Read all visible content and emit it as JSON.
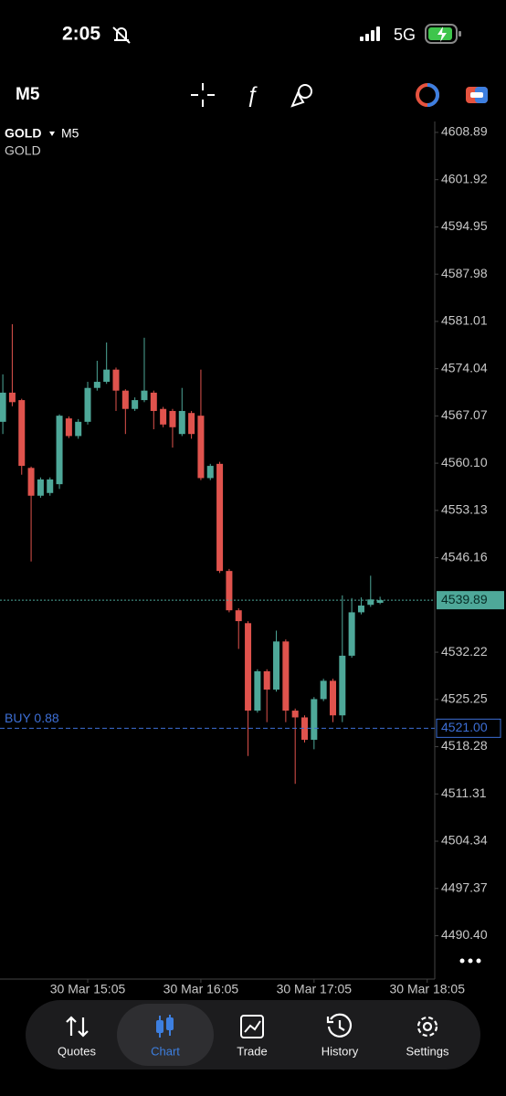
{
  "status_bar": {
    "time": "2:05",
    "network": "5G"
  },
  "toolbar": {
    "timeframe": "M5"
  },
  "chart_data": {
    "type": "candlestick",
    "symbol": "GOLD",
    "timeframe": "M5",
    "description": "GOLD",
    "up_color": "#4ea899",
    "down_color": "#e0534d",
    "open": [
      4566.2,
      4570.5,
      4569.4,
      4559.4,
      4555.3,
      4555.7,
      4557.0,
      4566.7,
      4564.1,
      4566.2,
      4571.2,
      4572.1,
      4573.9,
      4570.8,
      4568.1,
      4569.4,
      4570.5,
      4568.1,
      4567.8,
      4564.4,
      4567.5,
      4567.1,
      4557.9,
      4560.0,
      4544.2,
      4538.4,
      4536.5,
      4523.6,
      4529.4,
      4526.7,
      4533.8,
      4523.6,
      4522.6,
      4519.3,
      4525.3,
      4528.0,
      4522.9,
      4531.7,
      4538.1,
      4539.2,
      4539.5
    ],
    "high": [
      4573.2,
      4580.6,
      4569.6,
      4559.6,
      4558.0,
      4558.0,
      4567.3,
      4567.0,
      4566.6,
      4572.1,
      4575.2,
      4577.9,
      4574.2,
      4571.0,
      4569.8,
      4578.6,
      4570.8,
      4568.4,
      4568.1,
      4571.2,
      4567.8,
      4573.9,
      4560.0,
      4560.3,
      4544.5,
      4538.7,
      4536.8,
      4529.7,
      4529.7,
      4535.4,
      4534.1,
      4523.9,
      4522.9,
      4525.6,
      4528.3,
      4528.3,
      4540.6,
      4540.2,
      4540.3,
      4543.5,
      4540.4
    ],
    "low": [
      4564.4,
      4568.5,
      4558.4,
      4545.6,
      4555.0,
      4555.3,
      4556.3,
      4563.8,
      4563.7,
      4565.8,
      4570.8,
      4571.8,
      4567.8,
      4564.4,
      4567.8,
      4569.1,
      4565.1,
      4565.4,
      4562.4,
      4564.1,
      4563.7,
      4557.6,
      4557.6,
      4543.9,
      4538.1,
      4532.7,
      4516.9,
      4523.3,
      4521.9,
      4526.4,
      4521.9,
      4512.8,
      4518.9,
      4517.9,
      4525.0,
      4521.9,
      4521.9,
      4531.4,
      4537.8,
      4538.9,
      4539.3
    ],
    "close": [
      4570.5,
      4569.1,
      4559.7,
      4555.3,
      4557.7,
      4557.7,
      4567.1,
      4564.1,
      4566.2,
      4571.2,
      4572.1,
      4573.9,
      4570.8,
      4568.1,
      4569.4,
      4570.8,
      4567.8,
      4565.8,
      4565.4,
      4567.8,
      4564.4,
      4557.9,
      4559.7,
      4544.2,
      4538.4,
      4536.8,
      4523.6,
      4529.4,
      4526.7,
      4533.8,
      4523.6,
      4522.6,
      4519.3,
      4525.3,
      4528.0,
      4522.9,
      4531.7,
      4538.1,
      4539.1,
      4540.0,
      4539.89
    ],
    "xlim": [
      -0.3,
      45.8
    ],
    "xticks": [
      {
        "value": 9,
        "label": "30 Mar 15:05"
      },
      {
        "value": 21,
        "label": "30 Mar 16:05"
      },
      {
        "value": 33,
        "label": "30 Mar 17:05"
      },
      {
        "value": 45,
        "label": "30 Mar 18:05"
      }
    ],
    "ylim": [
      4484.0,
      4610.5
    ],
    "yticks": [
      4608.89,
      4601.92,
      4594.95,
      4587.98,
      4581.01,
      4574.04,
      4567.07,
      {
        "value": 4560.1,
        "label": "4560.10"
      },
      4553.13,
      4546.16,
      4532.22,
      4525.25,
      4518.28,
      4511.31,
      4504.34,
      4497.37,
      {
        "value": 4490.4,
        "label": "4490.40"
      }
    ],
    "last_price": 4539.89,
    "last_price_color": "#4ea899",
    "position": {
      "label": "BUY 0.88",
      "price": {
        "value": 4521.0,
        "label": "4521.00"
      },
      "color": "#3d6fd6"
    }
  },
  "tabs": [
    "Quotes",
    "Chart",
    "Trade",
    "History",
    "Settings"
  ]
}
